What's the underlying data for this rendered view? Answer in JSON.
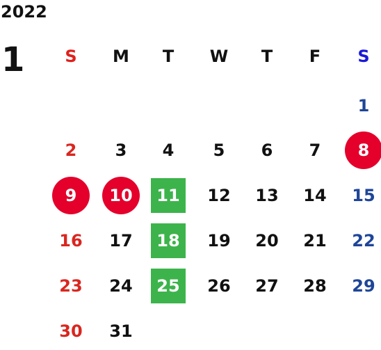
{
  "calendar": {
    "year": "2022",
    "month": "1",
    "weekdays": [
      "S",
      "M",
      "T",
      "W",
      "T",
      "F",
      "S"
    ],
    "weeks": [
      [
        "",
        "",
        "",
        "",
        "",
        "",
        "1"
      ],
      [
        "2",
        "3",
        "4",
        "5",
        "6",
        "7",
        "8"
      ],
      [
        "9",
        "10",
        "11",
        "12",
        "13",
        "14",
        "15"
      ],
      [
        "16",
        "17",
        "18",
        "19",
        "20",
        "21",
        "22"
      ],
      [
        "23",
        "24",
        "25",
        "26",
        "27",
        "28",
        "29"
      ],
      [
        "30",
        "31",
        "",
        "",
        "",
        "",
        ""
      ]
    ],
    "holidays_red": [
      "8",
      "9",
      "10"
    ],
    "highlight_green": [
      "11",
      "18",
      "25"
    ]
  },
  "colors": {
    "sunday_header": "#e0201b",
    "saturday_header": "#1a1ad6",
    "sunday_date": "#d9261f",
    "saturday_date": "#1e4598",
    "holiday_circle": "#e4002b",
    "green_box": "#3cb44b",
    "text": "#111111"
  }
}
